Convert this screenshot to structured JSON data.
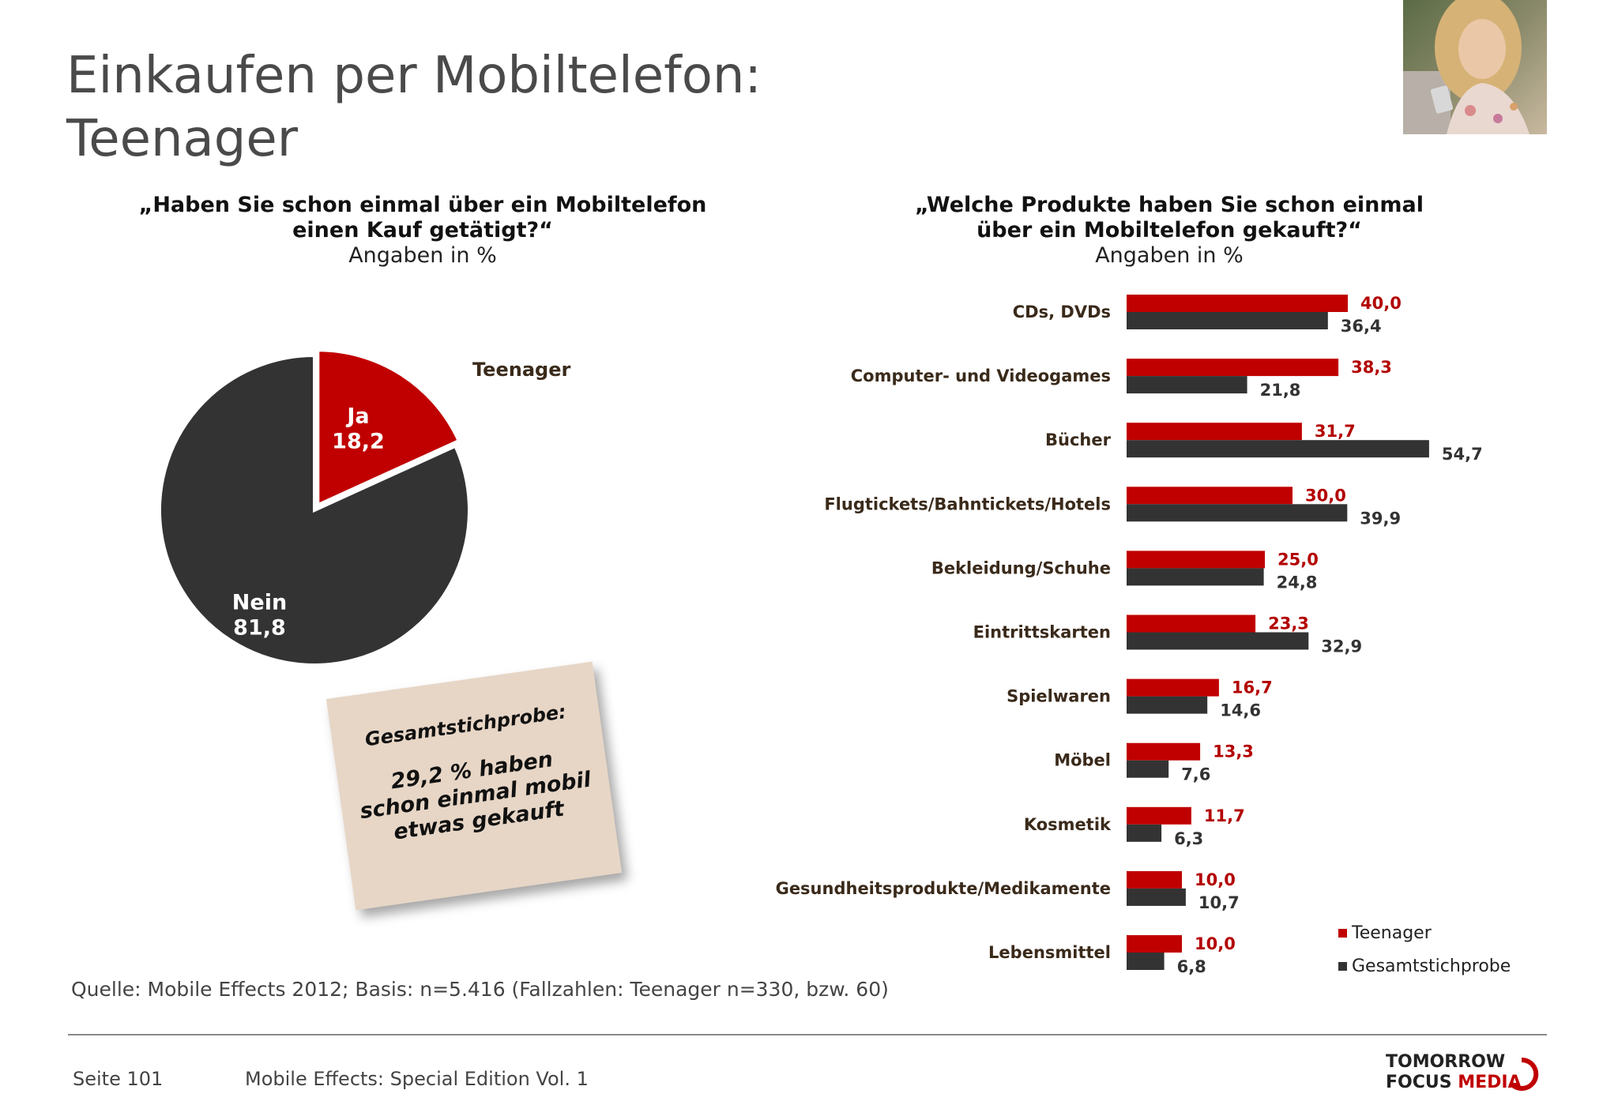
{
  "title_line1": "Einkaufen per Mobiltelefon:",
  "title_line2": "Teenager",
  "left_question_line1": "„Haben Sie schon einmal über ein Mobiltelefon",
  "left_question_line2": "einen Kauf getätigt?“",
  "left_question_unit": "Angaben in %",
  "right_question_line1": "„Welche Produkte haben Sie schon einmal",
  "right_question_line2": "über ein Mobiltelefon gekauft?“",
  "right_question_unit": "Angaben in %",
  "note": {
    "top": "Gesamtstichprobe:",
    "line1": "29,2 % haben",
    "line2": "schon einmal mobil",
    "line3": "etwas gekauft"
  },
  "legend": {
    "teen": "Teenager",
    "total": "Gesamtstichprobe"
  },
  "source": "Quelle: Mobile Effects 2012; Basis: n=5.416 (Fallzahlen: Teenager n=330, bzw. 60)",
  "footer": {
    "page": "Seite 101",
    "edition": "Mobile Effects: Special Edition Vol. 1",
    "logo_line1": "TOMORROW",
    "logo_line2a": "FOCUS ",
    "logo_line2b": "MEDIA"
  },
  "colors": {
    "teen": "#c00000",
    "total": "#333333",
    "teen_label": "#b30000",
    "total_label": "#333333"
  },
  "chart_data": [
    {
      "type": "pie",
      "title": "Teenager",
      "slices": [
        {
          "label": "Ja",
          "value": 18.2,
          "display": "18,2"
        },
        {
          "label": "Nein",
          "value": 81.8,
          "display": "81,8"
        }
      ]
    },
    {
      "type": "bar",
      "orientation": "horizontal",
      "categories": [
        "CDs, DVDs",
        "Computer- und Videogames",
        "Bücher",
        "Flugtickets/Bahntickets/Hotels",
        "Bekleidung/Schuhe",
        "Eintrittskarten",
        "Spielwaren",
        "Möbel",
        "Kosmetik",
        "Gesundheitsprodukte/Medikamente",
        "Lebensmittel"
      ],
      "series": [
        {
          "name": "Teenager",
          "values": [
            40.0,
            38.3,
            31.7,
            30.0,
            25.0,
            23.3,
            16.7,
            13.3,
            11.7,
            10.0,
            10.0
          ],
          "labels": [
            "40,0",
            "38,3",
            "31,7",
            "30,0",
            "25,0",
            "23,3",
            "16,7",
            "13,3",
            "11,7",
            "10,0",
            "10,0"
          ]
        },
        {
          "name": "Gesamtstichprobe",
          "values": [
            36.4,
            21.8,
            54.7,
            39.9,
            24.8,
            32.9,
            14.6,
            7.6,
            6.3,
            10.7,
            6.8
          ],
          "labels": [
            "36,4",
            "21,8",
            "54,7",
            "39,9",
            "24,8",
            "32,9",
            "14,6",
            "7,6",
            "6,3",
            "10,7",
            "6,8"
          ]
        }
      ],
      "legend_position": "bottom-right"
    }
  ]
}
